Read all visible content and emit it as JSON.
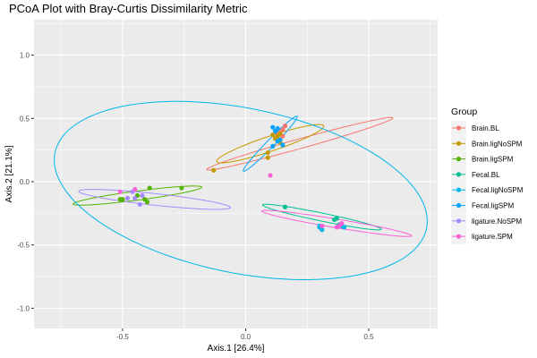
{
  "chart_data": {
    "type": "scatter",
    "title": "PCoA Plot with Bray-Curtis Dissimilarity Metric",
    "xlabel": "Axis.1   [26.4%]",
    "ylabel": "Axis.2   [21.1%]",
    "xlim": [
      -0.86,
      0.78
    ],
    "ylim": [
      -1.16,
      1.28
    ],
    "xticks": [
      -0.5,
      0.0,
      0.5
    ],
    "xtick_labels": [
      "-0.5",
      "0.0",
      "0.5"
    ],
    "yticks": [
      -1.0,
      -0.5,
      0.0,
      0.5,
      1.0
    ],
    "ytick_labels": [
      "-1.0",
      "-0.5",
      "0.0",
      "0.5",
      "1.0"
    ],
    "grid": true,
    "panel_background": "#EBEBEB",
    "legend": {
      "title": "Group",
      "position": "right"
    },
    "series": [
      {
        "name": "Brain.BL",
        "color": "#F8766D",
        "x": [
          0.15,
          0.16,
          0.14,
          0.13,
          0.15
        ],
        "y": [
          0.41,
          0.44,
          0.39,
          0.37,
          0.36
        ],
        "ellipse": {
          "cx": 0.22,
          "cy": 0.3,
          "rx": 0.43,
          "ry": 0.035,
          "angle_deg": 28.5
        }
      },
      {
        "name": "Brain.ligNoSPM",
        "color": "#C49A00",
        "x": [
          0.13,
          0.12,
          0.14,
          0.14,
          0.11,
          0.09,
          0.09,
          -0.13
        ],
        "y": [
          0.36,
          0.34,
          0.31,
          0.38,
          0.37,
          0.23,
          0.19,
          0.09
        ],
        "ellipse": {
          "cx": 0.1,
          "cy": 0.3,
          "rx": 0.26,
          "ry": 0.052,
          "angle_deg": 34
        }
      },
      {
        "name": "Brain.ligSPM",
        "color": "#53B400",
        "x": [
          -0.51,
          -0.44,
          -0.39,
          -0.4,
          -0.26,
          -0.5,
          -0.41
        ],
        "y": [
          -0.14,
          -0.11,
          -0.05,
          -0.16,
          -0.05,
          -0.14,
          -0.14
        ],
        "ellipse": {
          "cx": -0.44,
          "cy": -0.11,
          "rx": 0.27,
          "ry": 0.035,
          "angle_deg": 14.5
        }
      },
      {
        "name": "Fecal.BL",
        "color": "#00C094",
        "x": [
          0.16,
          0.36,
          0.37,
          0.38,
          0.38
        ],
        "y": [
          -0.2,
          -0.3,
          -0.29,
          -0.35,
          -0.34
        ],
        "ellipse": {
          "cx": 0.31,
          "cy": -0.28,
          "rx": 0.26,
          "ry": 0.03,
          "angle_deg": -22
        }
      },
      {
        "name": "Fecal.ligNoSPM",
        "color": "#00B6EB",
        "x": [
          0.3,
          0.31,
          0.3,
          0.4,
          0.39
        ],
        "y": [
          -0.36,
          -0.38,
          -0.35,
          -0.36,
          -0.35
        ],
        "ellipse": {
          "cx": -0.02,
          "cy": -0.07,
          "rx": 0.85,
          "ry": 0.59,
          "angle_deg": -39
        }
      },
      {
        "name": "Fecal.ligSPM",
        "color": "#06A4FF",
        "x": [
          0.11,
          0.12,
          0.13,
          0.14,
          0.13,
          0.11,
          0.15
        ],
        "y": [
          0.43,
          0.4,
          0.42,
          0.33,
          0.32,
          0.28,
          0.29
        ],
        "ellipse": {
          "cx": 0.1,
          "cy": 0.3,
          "rx": 0.243,
          "ry": 0.019,
          "angle_deg": 63.5
        }
      },
      {
        "name": "ligature.NoSPM",
        "color": "#A58AFF",
        "x": [
          -0.46,
          -0.42,
          -0.45,
          -0.48,
          -0.43
        ],
        "y": [
          -0.08,
          -0.11,
          -0.13,
          -0.13,
          -0.18
        ],
        "ellipse": {
          "cx": -0.37,
          "cy": -0.14,
          "rx": 0.315,
          "ry": 0.045,
          "angle_deg": -12
        }
      },
      {
        "name": "ligature.SPM",
        "color": "#FB61D7",
        "x": [
          -0.51,
          -0.45,
          0.1,
          0.37,
          0.39,
          0.38,
          0.31
        ],
        "y": [
          -0.08,
          -0.06,
          0.05,
          -0.36,
          -0.33,
          -0.35,
          -0.35
        ],
        "ellipse": {
          "cx": 0.37,
          "cy": -0.33,
          "rx": 0.32,
          "ry": 0.033,
          "angle_deg": -18
        }
      }
    ]
  }
}
